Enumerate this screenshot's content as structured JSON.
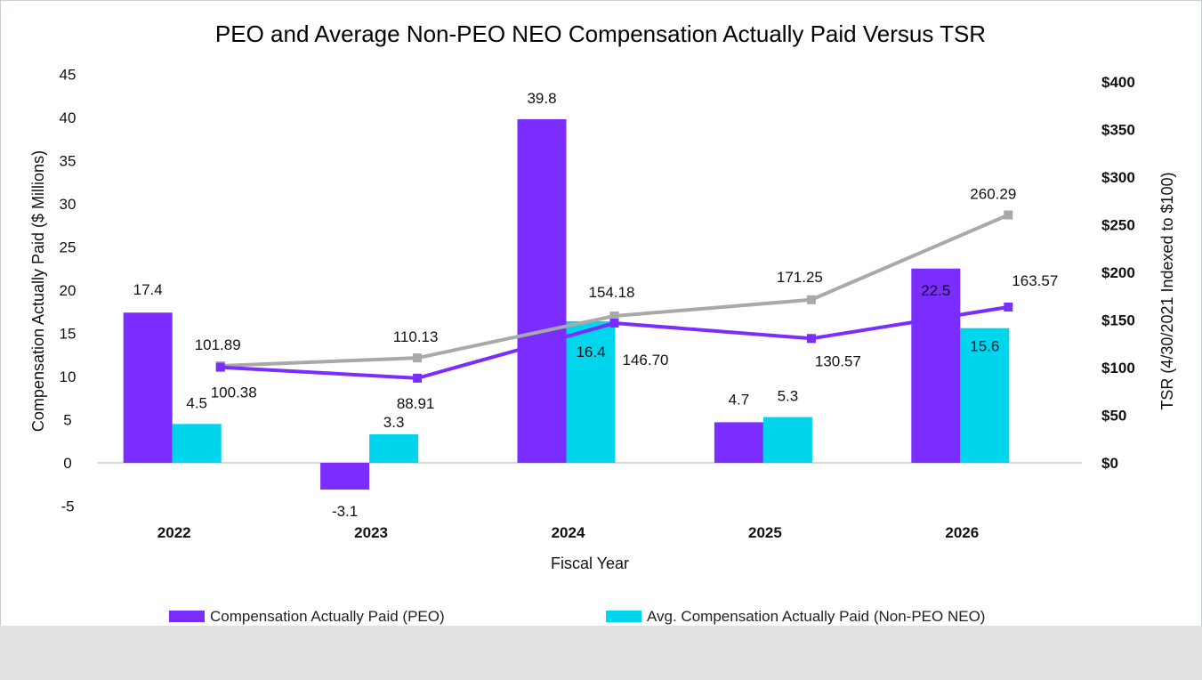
{
  "chart_data": {
    "type": "bar",
    "title": "PEO and Average Non-PEO NEO Compensation Actually Paid Versus TSR",
    "xlabel": "Fiscal Year",
    "ylabel": "Compensation Actually Paid ($ Millions)",
    "y2label": "TSR (4/30/2021 Indexed to $100)",
    "categories": [
      "2022",
      "2023",
      "2024",
      "2025",
      "2026"
    ],
    "ylim": [
      -5,
      45
    ],
    "yticks": [
      "-5",
      "0",
      "5",
      "10",
      "15",
      "20",
      "25",
      "30",
      "35",
      "40",
      "45"
    ],
    "y2lim": [
      0,
      400
    ],
    "y2ticks": [
      "$0",
      "$50",
      "$100",
      "$150",
      "$200",
      "$250",
      "$300",
      "$350",
      "$400"
    ],
    "grid": false,
    "legend_position": "bottom",
    "series": [
      {
        "name": "Compensation Actually Paid (PEO)",
        "kind": "bar",
        "axis": "left",
        "color": "#7b2cff",
        "values": [
          17.4,
          -3.1,
          39.8,
          4.7,
          22.5
        ],
        "labels": [
          "17.4",
          "-3.1",
          "39.8",
          "4.7",
          "22.5"
        ]
      },
      {
        "name": "Avg. Compensation Actually Paid (Non-PEO NEO)",
        "kind": "bar",
        "axis": "left",
        "color": "#00d5ee",
        "values": [
          4.5,
          3.3,
          16.4,
          5.3,
          15.6
        ],
        "labels": [
          "4.5",
          "3.3",
          "16.4",
          "5.3",
          "15.6"
        ]
      },
      {
        "name": "",
        "kind": "line",
        "axis": "right",
        "color": "#7b2cff",
        "values": [
          100.38,
          88.91,
          146.7,
          130.57,
          163.57
        ],
        "labels": [
          "100.38",
          "88.91",
          "146.70",
          "130.57",
          "163.57"
        ]
      },
      {
        "name": "",
        "kind": "line",
        "axis": "right",
        "color": "#a9a9a9",
        "values": [
          101.89,
          110.13,
          154.18,
          171.25,
          260.29
        ],
        "labels": [
          "101.89",
          "110.13",
          "154.18",
          "171.25",
          "260.29"
        ]
      }
    ]
  }
}
